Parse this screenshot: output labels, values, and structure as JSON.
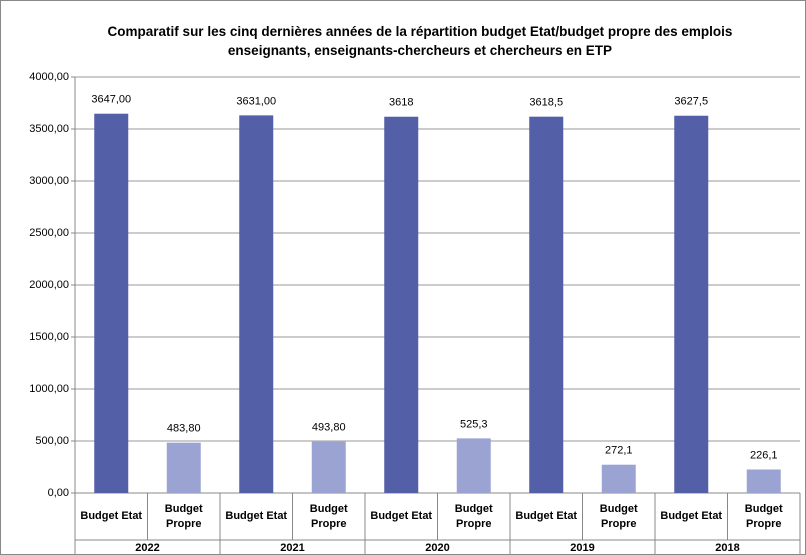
{
  "chart_data": {
    "type": "bar",
    "title": "Comparatif sur les cinq dernières années de la répartition budget Etat/budget propre des emplois enseignants, enseignants-chercheurs et chercheurs en ETP",
    "groups": [
      "2022",
      "2021",
      "2020",
      "2019",
      "2018"
    ],
    "categories": [
      "Budget Etat",
      "Budget Propre",
      "Budget Etat",
      "Budget Propre",
      "Budget Etat",
      "Budget Propre",
      "Budget Etat",
      "Budget Propre",
      "Budget Etat",
      "Budget Propre"
    ],
    "values": [
      3647,
      483.8,
      3631,
      493.8,
      3618,
      525.3,
      3618.5,
      272.1,
      3627.5,
      226.1
    ],
    "value_labels": [
      "3647,00",
      "483,80",
      "3631,00",
      "493,80",
      "3618",
      "525,3",
      "3618,5",
      "272,1",
      "3627,5",
      "226,1"
    ],
    "colors": [
      "#535fa6",
      "#9ba3d3"
    ],
    "ylim": [
      0,
      4000
    ],
    "yticks": [
      {
        "value": 0,
        "label": "0,00"
      },
      {
        "value": 500,
        "label": "500,00"
      },
      {
        "value": 1000,
        "label": "1000,00"
      },
      {
        "value": 1500,
        "label": "1500,00"
      },
      {
        "value": 2000,
        "label": "2000,00"
      },
      {
        "value": 2500,
        "label": "2500,00"
      },
      {
        "value": 3000,
        "label": "3000,00"
      },
      {
        "value": 3500,
        "label": "3500,00"
      },
      {
        "value": 4000,
        "label": "4000,00"
      }
    ],
    "grid": true
  }
}
